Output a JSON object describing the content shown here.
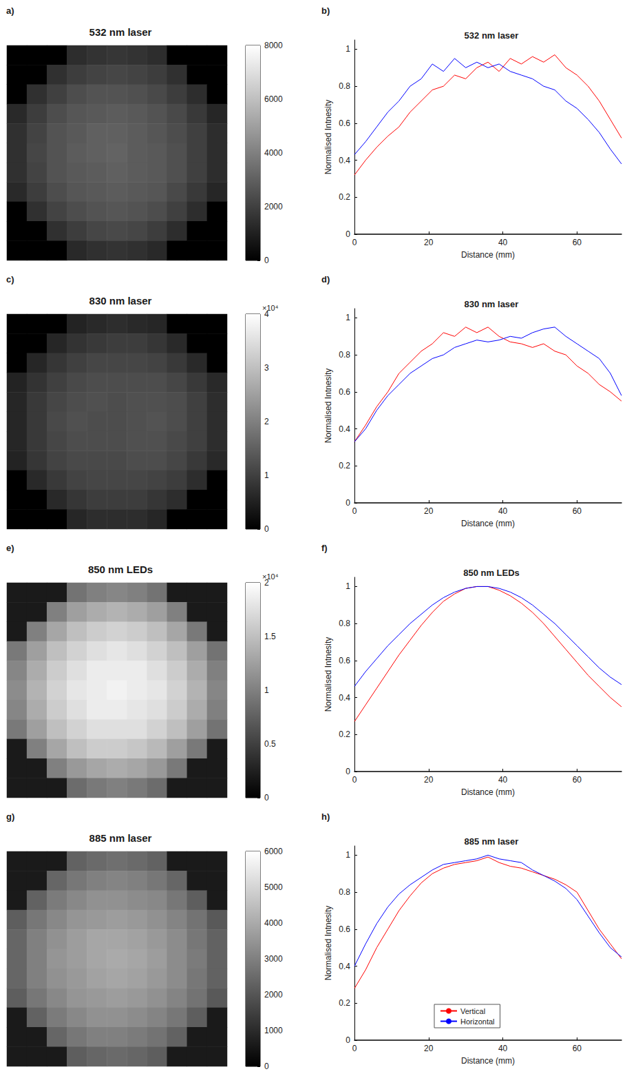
{
  "chart_data": [
    {
      "type": "heatmap",
      "panel": "a)",
      "title": "532 nm laser",
      "tick_labels": false,
      "cells": [
        [
          0,
          0,
          0,
          1400,
          1600,
          1700,
          1600,
          1400,
          0,
          0,
          0
        ],
        [
          0,
          0,
          1500,
          1900,
          2100,
          2200,
          2100,
          1900,
          1500,
          0,
          0
        ],
        [
          0,
          1500,
          2000,
          2400,
          2600,
          2600,
          2500,
          2300,
          1900,
          1400,
          0
        ],
        [
          1300,
          1900,
          2400,
          2700,
          2800,
          2900,
          2800,
          2600,
          2300,
          1800,
          1200
        ],
        [
          1500,
          2100,
          2600,
          2800,
          3000,
          3000,
          2900,
          2700,
          2400,
          2000,
          1400
        ],
        [
          1500,
          2200,
          2600,
          2900,
          3000,
          3100,
          2900,
          2800,
          2500,
          2000,
          1400
        ],
        [
          1500,
          2100,
          2600,
          2800,
          2900,
          3000,
          2900,
          2800,
          2500,
          2000,
          1400
        ],
        [
          1300,
          1900,
          2400,
          2700,
          2800,
          2900,
          2800,
          2700,
          2300,
          1800,
          1200
        ],
        [
          0,
          1500,
          2100,
          2400,
          2600,
          2700,
          2600,
          2400,
          2000,
          1400,
          0
        ],
        [
          0,
          0,
          1500,
          1900,
          2200,
          2300,
          2200,
          1900,
          1400,
          0,
          0
        ],
        [
          0,
          0,
          0,
          1300,
          1500,
          1600,
          1500,
          1300,
          0,
          0,
          0
        ]
      ],
      "colorbar_lim": [
        0,
        8000
      ],
      "colorbar_ticks": [
        0,
        2000,
        4000,
        6000,
        8000
      ]
    },
    {
      "type": "line",
      "panel": "b)",
      "title": "532 nm laser",
      "x_label": "Distance (mm)",
      "y_label": "Normalised Intnesity",
      "x": [
        0,
        3,
        6,
        9,
        12,
        15,
        18,
        21,
        24,
        27,
        30,
        33,
        36,
        39,
        42,
        45,
        48,
        51,
        54,
        57,
        60,
        63,
        66,
        69,
        72
      ],
      "xlim": [
        0,
        72
      ],
      "ylim": [
        0,
        1.05
      ],
      "xticks": [
        0,
        20,
        40,
        60
      ],
      "yticks": [
        0,
        0.2,
        0.4,
        0.6,
        0.8,
        1
      ],
      "series": [
        {
          "name": "Vertical",
          "color": "#ff0000",
          "values": [
            0.32,
            0.4,
            0.47,
            0.53,
            0.58,
            0.66,
            0.72,
            0.78,
            0.8,
            0.86,
            0.84,
            0.9,
            0.93,
            0.88,
            0.95,
            0.92,
            0.96,
            0.93,
            0.97,
            0.9,
            0.86,
            0.8,
            0.72,
            0.62,
            0.52
          ]
        },
        {
          "name": "Horizontal",
          "color": "#0000ff",
          "values": [
            0.43,
            0.5,
            0.58,
            0.66,
            0.72,
            0.8,
            0.84,
            0.92,
            0.88,
            0.95,
            0.9,
            0.93,
            0.9,
            0.92,
            0.88,
            0.86,
            0.84,
            0.8,
            0.78,
            0.72,
            0.68,
            0.62,
            0.55,
            0.46,
            0.38
          ]
        }
      ]
    },
    {
      "type": "heatmap",
      "panel": "c)",
      "title": "830 nm laser",
      "tick_labels": false,
      "cells": [
        [
          0,
          0,
          0,
          5500,
          6500,
          7000,
          6500,
          6000,
          0,
          0,
          0
        ],
        [
          0,
          0,
          6000,
          8000,
          9000,
          9500,
          9500,
          8500,
          6500,
          0,
          0
        ],
        [
          0,
          6000,
          8500,
          10000,
          11000,
          11000,
          11000,
          10500,
          9000,
          6500,
          0
        ],
        [
          5500,
          8000,
          10000,
          11500,
          12000,
          12000,
          12000,
          12000,
          11000,
          9000,
          6500
        ],
        [
          6000,
          9000,
          11000,
          12000,
          12500,
          12000,
          12500,
          12500,
          12000,
          10000,
          7000
        ],
        [
          6000,
          9000,
          11500,
          12500,
          12000,
          12000,
          12500,
          13000,
          12000,
          10000,
          7000
        ],
        [
          6000,
          9000,
          11000,
          12000,
          12000,
          12000,
          12500,
          12500,
          11500,
          10000,
          7000
        ],
        [
          5500,
          8500,
          10500,
          11500,
          11500,
          11500,
          12000,
          12000,
          11000,
          9000,
          6500
        ],
        [
          0,
          6500,
          9000,
          10500,
          11000,
          11000,
          11000,
          10500,
          9500,
          7000,
          0
        ],
        [
          0,
          0,
          6500,
          8500,
          9500,
          9500,
          9500,
          8500,
          7000,
          0,
          0
        ],
        [
          0,
          0,
          0,
          6000,
          7000,
          7000,
          7000,
          6000,
          0,
          0,
          0
        ]
      ],
      "colorbar_lim": [
        0,
        40000
      ],
      "colorbar_ticks": [
        0,
        {
          "value": 10000,
          "label": "1"
        },
        {
          "value": 20000,
          "label": "2"
        },
        {
          "value": 30000,
          "label": "3"
        },
        {
          "value": 40000,
          "label": "4"
        }
      ],
      "colorbar_multiplier": "×10⁴"
    },
    {
      "type": "line",
      "panel": "d)",
      "title": "830 nm laser",
      "x_label": "Distance (mm)",
      "y_label": "Normalised Intnesity",
      "x": [
        0,
        3,
        6,
        9,
        12,
        15,
        18,
        21,
        24,
        27,
        30,
        33,
        36,
        39,
        42,
        45,
        48,
        51,
        54,
        57,
        60,
        63,
        66,
        69,
        72
      ],
      "xlim": [
        0,
        72
      ],
      "ylim": [
        0,
        1.05
      ],
      "xticks": [
        0,
        20,
        40,
        60
      ],
      "yticks": [
        0,
        0.2,
        0.4,
        0.6,
        0.8,
        1
      ],
      "series": [
        {
          "name": "Vertical",
          "color": "#ff0000",
          "values": [
            0.33,
            0.42,
            0.52,
            0.6,
            0.7,
            0.76,
            0.82,
            0.86,
            0.92,
            0.9,
            0.95,
            0.92,
            0.95,
            0.9,
            0.87,
            0.86,
            0.84,
            0.86,
            0.82,
            0.8,
            0.74,
            0.7,
            0.64,
            0.6,
            0.55
          ]
        },
        {
          "name": "Horizontal",
          "color": "#0000ff",
          "values": [
            0.33,
            0.4,
            0.5,
            0.58,
            0.64,
            0.7,
            0.74,
            0.78,
            0.8,
            0.84,
            0.86,
            0.88,
            0.87,
            0.88,
            0.9,
            0.89,
            0.92,
            0.94,
            0.95,
            0.9,
            0.86,
            0.82,
            0.78,
            0.7,
            0.58
          ]
        }
      ]
    },
    {
      "type": "heatmap",
      "panel": "e)",
      "title": "850 nm LEDs",
      "tick_labels": false,
      "cells": [
        [
          2000,
          2000,
          2000,
          9000,
          10000,
          10500,
          10000,
          9000,
          2000,
          2000,
          2000
        ],
        [
          2000,
          2000,
          10000,
          12500,
          13500,
          14000,
          13500,
          12500,
          10000,
          2000,
          2000
        ],
        [
          2000,
          10000,
          13000,
          15000,
          16000,
          16500,
          16000,
          15000,
          13000,
          9500,
          2000
        ],
        [
          9500,
          12500,
          15000,
          16500,
          17500,
          18000,
          17500,
          16500,
          15000,
          12500,
          9000
        ],
        [
          10500,
          13500,
          16000,
          17500,
          18500,
          18500,
          18500,
          17500,
          16000,
          13500,
          10000
        ],
        [
          11000,
          14000,
          16500,
          18000,
          18500,
          19000,
          18500,
          18000,
          16500,
          14000,
          10500
        ],
        [
          10500,
          13500,
          16000,
          17500,
          18500,
          18500,
          18000,
          17500,
          16000,
          13500,
          10000
        ],
        [
          9500,
          12500,
          15000,
          16500,
          17500,
          17500,
          17500,
          16500,
          15000,
          12500,
          9000
        ],
        [
          2000,
          10000,
          13000,
          15000,
          16000,
          16000,
          15500,
          14500,
          12500,
          9500,
          2000
        ],
        [
          2000,
          2000,
          10000,
          12000,
          13000,
          13500,
          13000,
          12000,
          9500,
          2000,
          2000
        ],
        [
          2000,
          2000,
          2000,
          8500,
          9500,
          10000,
          9500,
          8500,
          2000,
          2000,
          2000
        ]
      ],
      "colorbar_lim": [
        0,
        20000
      ],
      "colorbar_ticks": [
        0,
        {
          "value": 5000,
          "label": "0.5"
        },
        {
          "value": 10000,
          "label": "1"
        },
        {
          "value": 15000,
          "label": "1.5"
        },
        {
          "value": 20000,
          "label": "2"
        }
      ],
      "colorbar_multiplier": "×10⁴"
    },
    {
      "type": "line",
      "panel": "f)",
      "title": "850 nm LEDs",
      "x_label": "Distance (mm)",
      "y_label": "Normalised Intnesity",
      "x": [
        0,
        3,
        6,
        9,
        12,
        15,
        18,
        21,
        24,
        27,
        30,
        33,
        36,
        39,
        42,
        45,
        48,
        51,
        54,
        57,
        60,
        63,
        66,
        69,
        72
      ],
      "xlim": [
        0,
        72
      ],
      "ylim": [
        0,
        1.05
      ],
      "xticks": [
        0,
        20,
        40,
        60
      ],
      "yticks": [
        0,
        0.2,
        0.4,
        0.6,
        0.8,
        1
      ],
      "series": [
        {
          "name": "Vertical",
          "color": "#ff0000",
          "values": [
            0.27,
            0.36,
            0.45,
            0.54,
            0.63,
            0.71,
            0.79,
            0.86,
            0.92,
            0.96,
            0.99,
            1.0,
            1.0,
            0.98,
            0.95,
            0.91,
            0.86,
            0.8,
            0.73,
            0.66,
            0.59,
            0.52,
            0.46,
            0.4,
            0.35
          ]
        },
        {
          "name": "Horizontal",
          "color": "#0000ff",
          "values": [
            0.46,
            0.54,
            0.61,
            0.68,
            0.74,
            0.8,
            0.85,
            0.9,
            0.94,
            0.97,
            0.99,
            1.0,
            1.0,
            0.99,
            0.97,
            0.94,
            0.9,
            0.85,
            0.8,
            0.74,
            0.68,
            0.62,
            0.56,
            0.51,
            0.47
          ]
        }
      ]
    },
    {
      "type": "heatmap",
      "panel": "g)",
      "title": "885 nm laser",
      "tick_labels": false,
      "cells": [
        [
          600,
          600,
          600,
          2300,
          2500,
          2600,
          2500,
          2300,
          600,
          600,
          600
        ],
        [
          600,
          600,
          2400,
          2800,
          3000,
          3100,
          3000,
          2800,
          2400,
          600,
          600
        ],
        [
          600,
          2300,
          2900,
          3200,
          3400,
          3400,
          3300,
          3200,
          2800,
          2200,
          600
        ],
        [
          2200,
          2800,
          3200,
          3500,
          3600,
          3700,
          3600,
          3400,
          3100,
          2700,
          2100
        ],
        [
          2400,
          3000,
          3400,
          3700,
          3900,
          3900,
          3800,
          3600,
          3300,
          2800,
          2300
        ],
        [
          2400,
          3000,
          3500,
          3700,
          3900,
          4000,
          3900,
          3700,
          3300,
          2900,
          2300
        ],
        [
          2400,
          3000,
          3400,
          3600,
          3800,
          3900,
          3800,
          3600,
          3300,
          2800,
          2300
        ],
        [
          2200,
          2800,
          3200,
          3500,
          3600,
          3700,
          3600,
          3400,
          3100,
          2700,
          2100
        ],
        [
          600,
          2300,
          2900,
          3200,
          3400,
          3400,
          3300,
          3100,
          2800,
          2200,
          600
        ],
        [
          600,
          600,
          2400,
          2800,
          3000,
          3000,
          2900,
          2700,
          2300,
          600,
          600
        ],
        [
          600,
          600,
          600,
          2200,
          2400,
          2500,
          2400,
          2200,
          600,
          600,
          600
        ]
      ],
      "colorbar_lim": [
        0,
        6000
      ],
      "colorbar_ticks": [
        0,
        1000,
        2000,
        3000,
        4000,
        5000,
        6000
      ]
    },
    {
      "type": "line",
      "panel": "h)",
      "title": "885 nm laser",
      "x_label": "Distance (mm)",
      "y_label": "Normalised Intnesity",
      "x": [
        0,
        3,
        6,
        9,
        12,
        15,
        18,
        21,
        24,
        27,
        30,
        33,
        36,
        39,
        42,
        45,
        48,
        51,
        54,
        57,
        60,
        63,
        66,
        69,
        72
      ],
      "xlim": [
        0,
        72
      ],
      "ylim": [
        0,
        1.05
      ],
      "xticks": [
        0,
        20,
        40,
        60
      ],
      "yticks": [
        0,
        0.2,
        0.4,
        0.6,
        0.8,
        1
      ],
      "legend": "lower center",
      "series": [
        {
          "name": "Vertical",
          "color": "#ff0000",
          "values": [
            0.28,
            0.38,
            0.5,
            0.6,
            0.7,
            0.78,
            0.85,
            0.9,
            0.93,
            0.95,
            0.96,
            0.97,
            0.99,
            0.96,
            0.94,
            0.93,
            0.91,
            0.89,
            0.87,
            0.84,
            0.8,
            0.7,
            0.6,
            0.52,
            0.44
          ]
        },
        {
          "name": "Horizontal",
          "color": "#0000ff",
          "values": [
            0.4,
            0.52,
            0.63,
            0.72,
            0.79,
            0.84,
            0.88,
            0.92,
            0.95,
            0.96,
            0.97,
            0.98,
            1.0,
            0.98,
            0.97,
            0.96,
            0.92,
            0.89,
            0.86,
            0.82,
            0.76,
            0.67,
            0.58,
            0.5,
            0.45
          ]
        }
      ]
    }
  ]
}
